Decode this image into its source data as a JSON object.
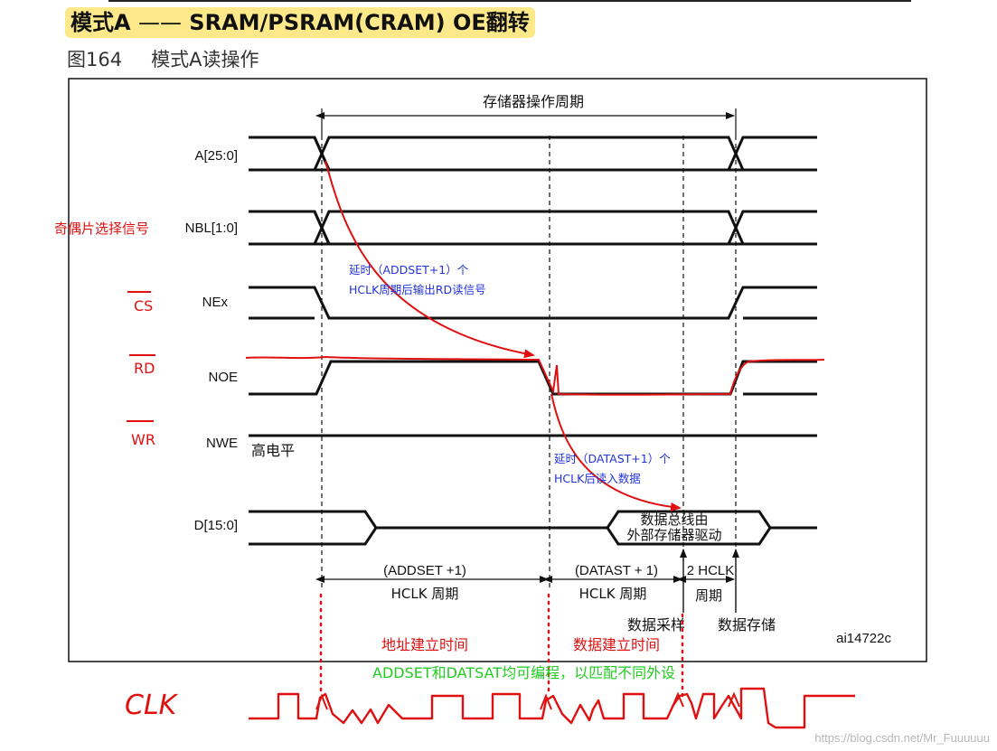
{
  "heading": {
    "prefix": "模式",
    "mode": "A",
    "dash": "——",
    "rest": "SRAM/PSRAM(CRAM) OE",
    "suffix": "翻转"
  },
  "figure": {
    "number": "图164",
    "caption": "模式A读操作",
    "id_label": "ai14722c"
  },
  "cycle_label": "存储器操作周期",
  "signals": {
    "addr": "A[25:0]",
    "nbl": "NBL[1:0]",
    "nex": "NEx",
    "noe": "NOE",
    "nwe": "NWE",
    "data": "D[15:0]"
  },
  "nwe_note": "高电平",
  "data_bus_note": {
    "line1": "数据总线由",
    "line2": "外部存储器驱动"
  },
  "durations": {
    "addset_a": "(ADDSET +1)",
    "addset_b": "HCLK 周期",
    "datast_a": "(DATAST + 1)",
    "datast_b": "HCLK 周期",
    "hclk2_a": "2 HCLK",
    "hclk2_b": "周期"
  },
  "events": {
    "sample": "数据采样",
    "store": "数据存储"
  },
  "annotations": {
    "nbl_note": "奇偶片选择信号",
    "cs": "CS",
    "rd": "RD",
    "wr": "WR",
    "delay1_a": "延时（ADDSET+1）个",
    "delay1_b": "HCLK周期后输出RD读信号",
    "delay2_a": "延时（DATAST+1）个",
    "delay2_b": "HCLK后读入数据",
    "addr_setup": "地址建立时间",
    "data_setup": "数据建立时间",
    "green_note": "ADDSET和DATSAT均可编程，以匹配不同外设",
    "clk": "CLK"
  },
  "watermark": "https://blog.csdn.net/Mr_Fuuuuuu",
  "colors": {
    "annotation_red": "#e01010",
    "annotation_blue": "#2233dd",
    "annotation_green": "#22cc22",
    "heading_highlight": "#fde98a"
  }
}
